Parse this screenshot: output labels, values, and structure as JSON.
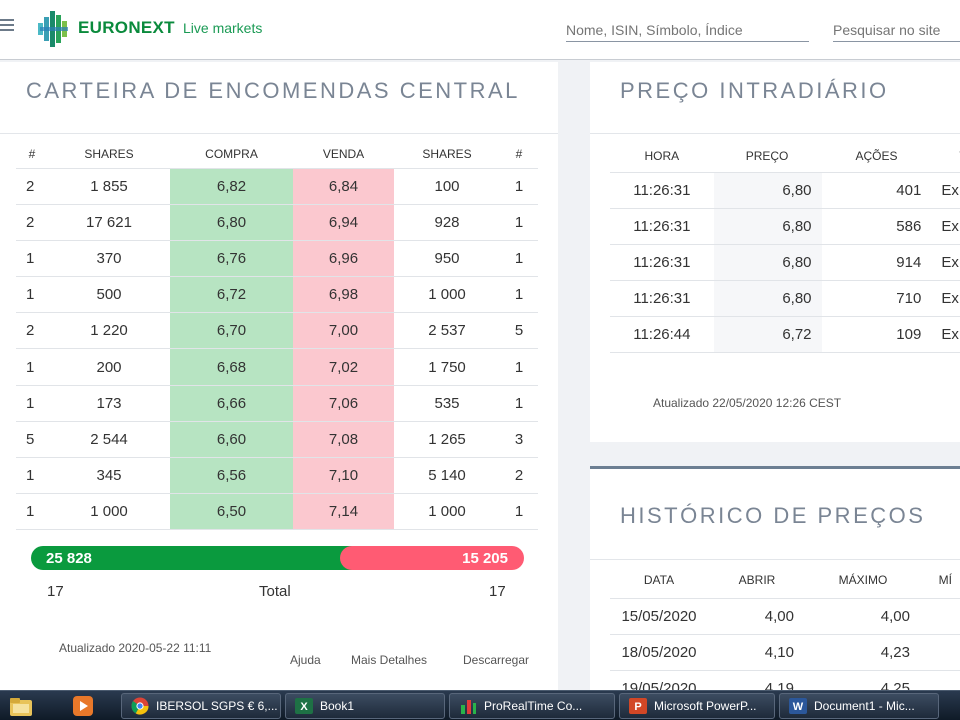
{
  "header": {
    "brand": "EURONEXT",
    "live_markets": "Live markets",
    "search_instrument_placeholder": "Nome, ISIN, Símbolo, Índice",
    "search_site_placeholder": "Pesquisar no site"
  },
  "order_book": {
    "title": "CARTEIRA DE ENCOMENDAS CENTRAL",
    "headers": [
      "#",
      "SHARES",
      "COMPRA",
      "VENDA",
      "SHARES",
      "#"
    ],
    "rows": [
      [
        "2",
        "1 855",
        "6,82",
        "6,84",
        "100",
        "1"
      ],
      [
        "2",
        "17 621",
        "6,80",
        "6,94",
        "928",
        "1"
      ],
      [
        "1",
        "370",
        "6,76",
        "6,96",
        "950",
        "1"
      ],
      [
        "1",
        "500",
        "6,72",
        "6,98",
        "1 000",
        "1"
      ],
      [
        "2",
        "1 220",
        "6,70",
        "7,00",
        "2 537",
        "5"
      ],
      [
        "1",
        "200",
        "6,68",
        "7,02",
        "1 750",
        "1"
      ],
      [
        "1",
        "173",
        "6,66",
        "7,06",
        "535",
        "1"
      ],
      [
        "5",
        "2 544",
        "6,60",
        "7,08",
        "1 265",
        "3"
      ],
      [
        "1",
        "345",
        "6,56",
        "7,10",
        "5 140",
        "2"
      ],
      [
        "1",
        "1 000",
        "6,50",
        "7,14",
        "1 000",
        "1"
      ]
    ],
    "buy_total": "25 828",
    "sell_total": "15 205",
    "buy_share": 0.629,
    "buy_color": "#0a9a3e",
    "sell_color": "#ff5b73",
    "buy_orders_total": "17",
    "total_label": "Total",
    "sell_orders_total": "17",
    "updated": "Atualizado 2020-05-22 11:11",
    "links": {
      "help": "Ajuda",
      "details": "Mais Detalhes",
      "download": "Descarregar"
    }
  },
  "intraday": {
    "title": "PREÇO INTRADIÁRIO",
    "headers": [
      "HORA",
      "PREÇO",
      "AÇÕES",
      "TI"
    ],
    "rows": [
      [
        "11:26:31",
        "6,80",
        "401",
        "Ex"
      ],
      [
        "11:26:31",
        "6,80",
        "586",
        "Ex"
      ],
      [
        "11:26:31",
        "6,80",
        "914",
        "Ex"
      ],
      [
        "11:26:31",
        "6,80",
        "710",
        "Ex"
      ],
      [
        "11:26:44",
        "6,72",
        "109",
        "Ex"
      ]
    ],
    "updated": "Atualizado 22/05/2020 12:26 CEST"
  },
  "history": {
    "title": "HISTÓRICO DE PREÇOS",
    "headers": [
      "DATA",
      "ABRIR",
      "MÁXIMO",
      "MÍ"
    ],
    "rows": [
      [
        "15/05/2020",
        "4,00",
        "4,00",
        ""
      ],
      [
        "18/05/2020",
        "4,10",
        "4,23",
        ""
      ],
      [
        "19/05/2020",
        "4,19",
        "4,25",
        ""
      ]
    ]
  },
  "taskbar": {
    "items": [
      {
        "label": "IBERSOL SGPS € 6,...",
        "icon": "chrome-icon"
      },
      {
        "label": "Book1",
        "icon": "excel-icon"
      },
      {
        "label": "ProRealTime Co...",
        "icon": "prorealtime-icon"
      },
      {
        "label": "Microsoft PowerP...",
        "icon": "powerpoint-icon"
      },
      {
        "label": "Document1 - Mic...",
        "icon": "word-icon"
      }
    ]
  }
}
